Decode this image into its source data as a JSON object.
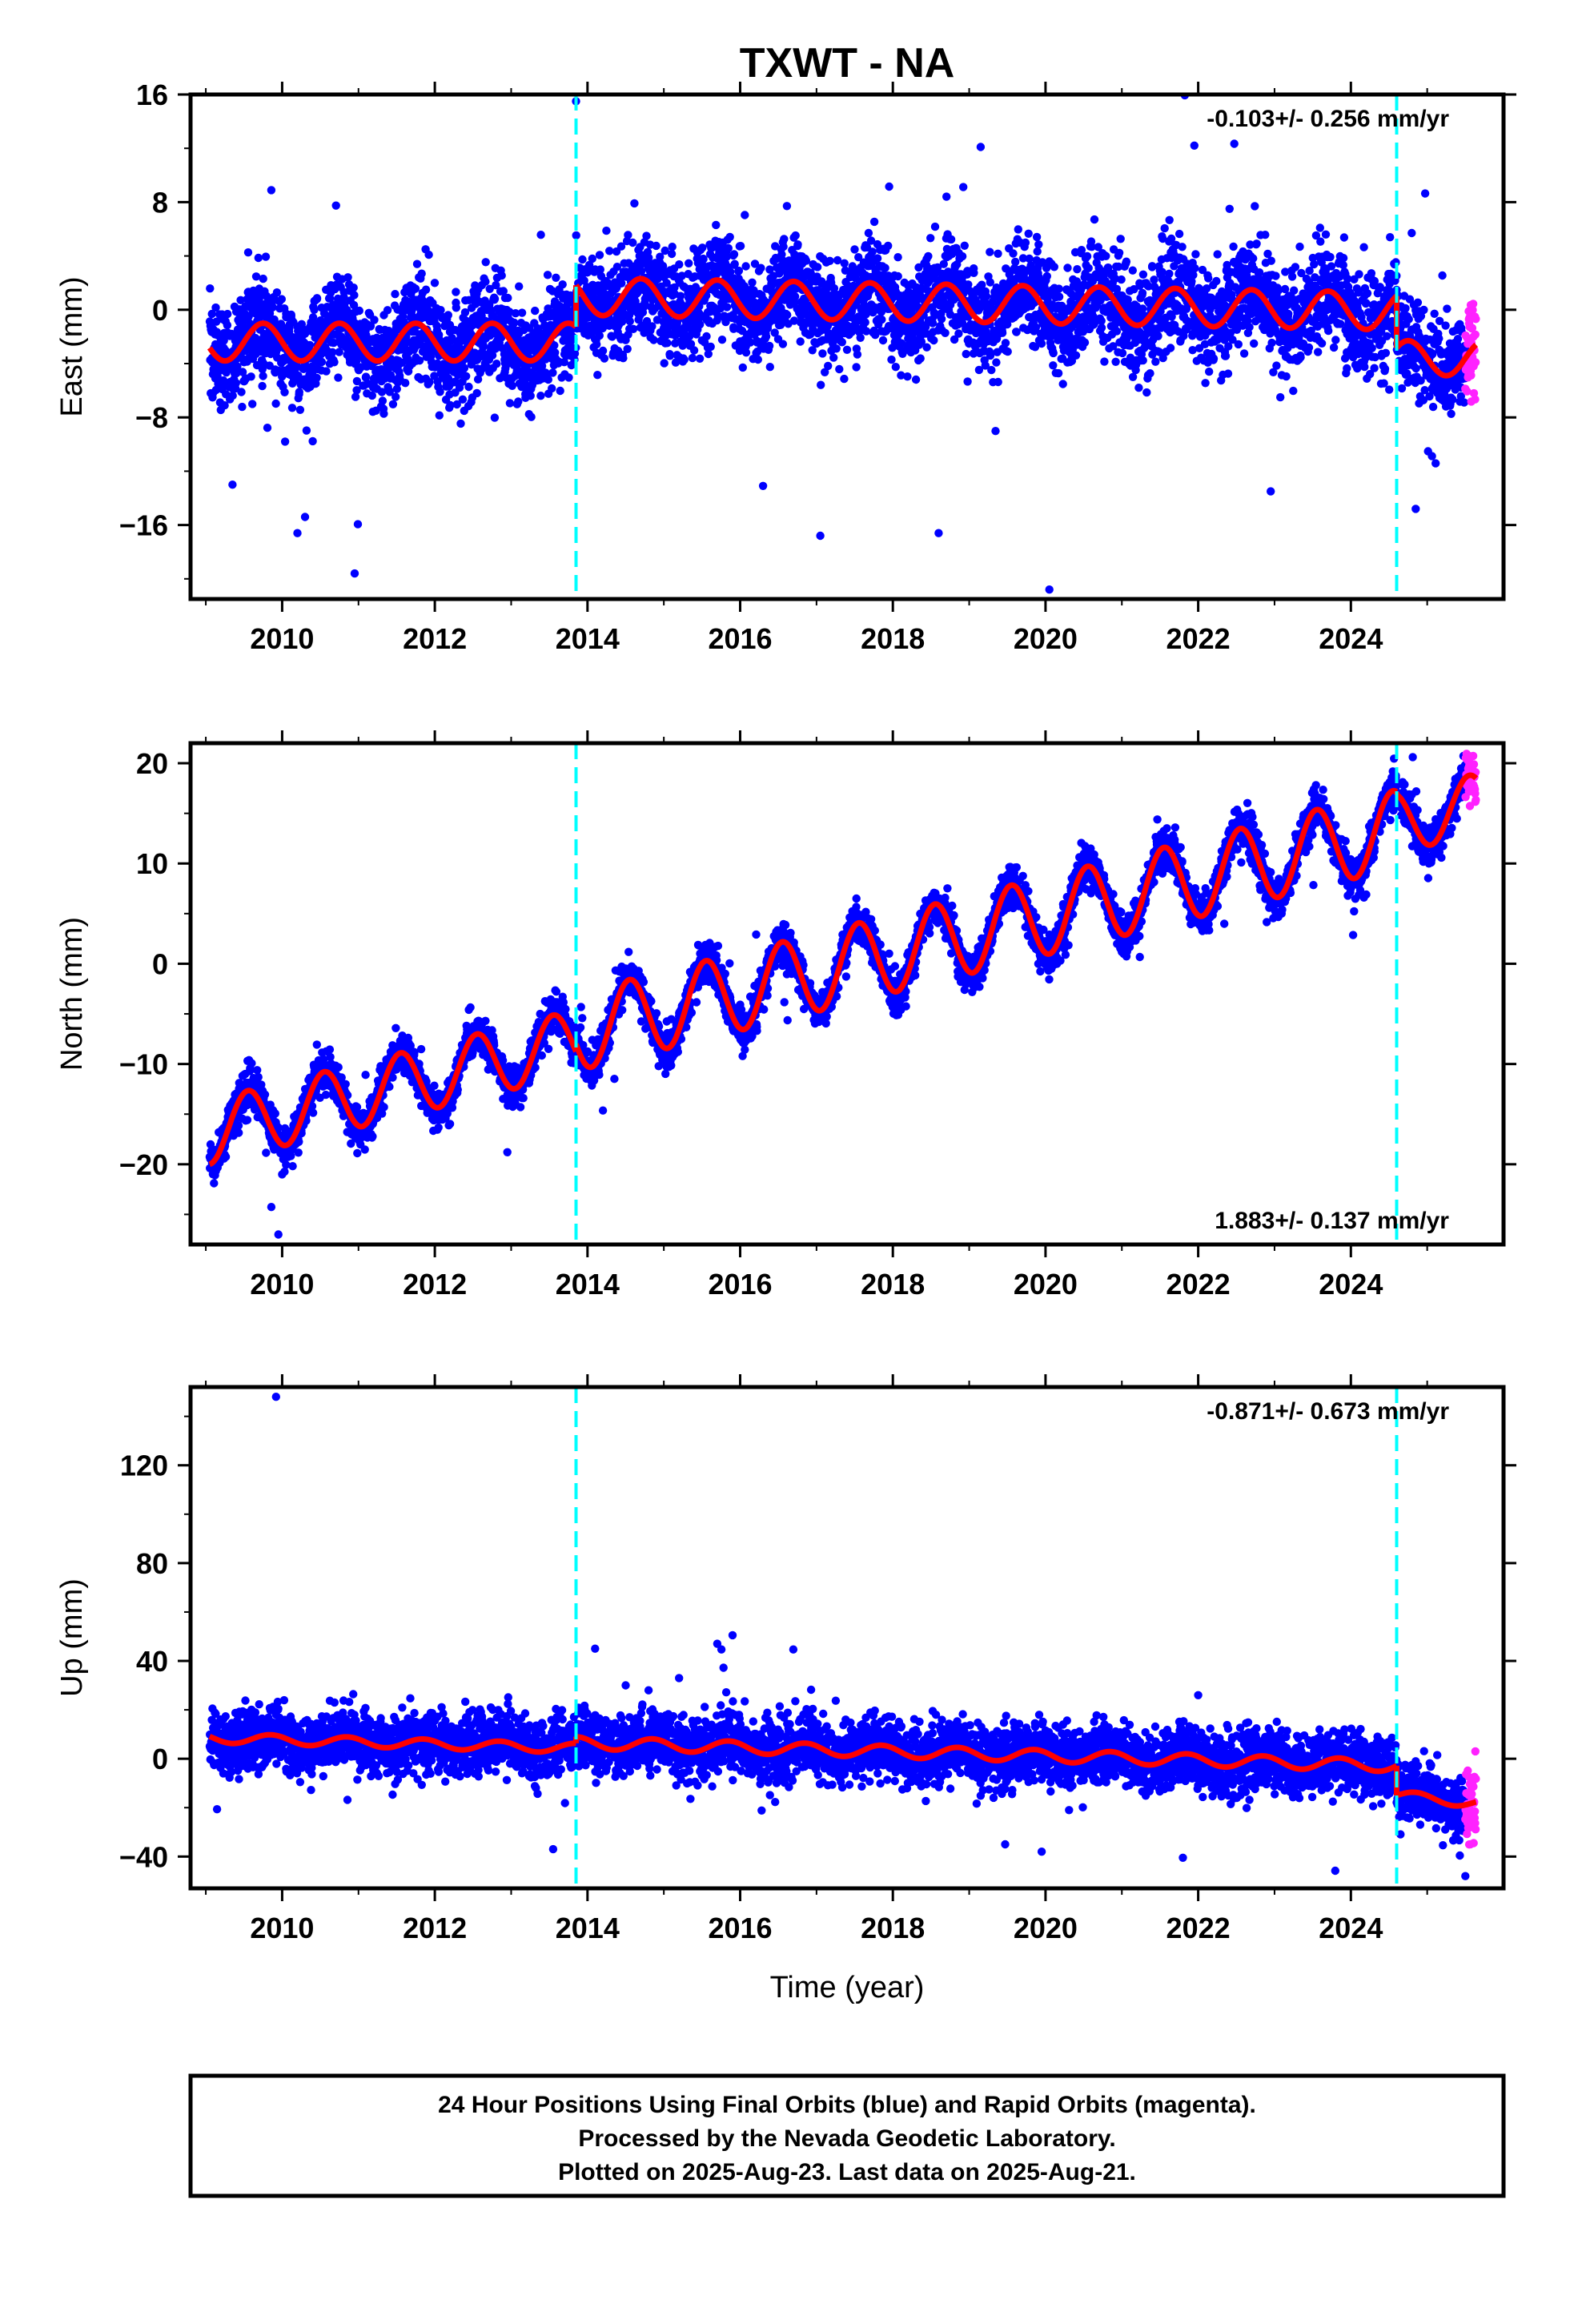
{
  "page_title": "TXWT - NA",
  "xlabel": "Time (year)",
  "footer": {
    "line1": "24 Hour Positions Using Final Orbits (blue) and Rapid Orbits (magenta).",
    "line2": "Processed by the Nevada Geodetic Laboratory.",
    "line3": "Plotted on 2025-Aug-23. Last data on 2025-Aug-21."
  },
  "colors": {
    "final_orbits": "#0000ff",
    "rapid_orbits": "#ff22ff",
    "model": "#ff0000",
    "event_lines": "#00ffff"
  },
  "chart_data": [
    {
      "type": "scatter",
      "name": "east",
      "title": "TXWT - NA",
      "ylabel": "East (mm)",
      "xlabel": "",
      "xlim": [
        2008.8,
        2026.0
      ],
      "ylim": [
        -21.5,
        16
      ],
      "yticks": [
        16,
        8,
        0,
        -8,
        -16
      ],
      "ytick_labels": [
        "16",
        "8",
        "0",
        "−8",
        "−16"
      ],
      "xticks": [
        2010,
        2012,
        2014,
        2016,
        2018,
        2020,
        2022,
        2024
      ],
      "xtick_labels": [
        "2010",
        "2012",
        "2014",
        "2016",
        "2018",
        "2020",
        "2022",
        "2024"
      ],
      "rate_text": "-0.103+/- 0.256 mm/yr",
      "rate_position": "top-right",
      "event_lines": [
        2013.85,
        2024.6
      ],
      "model": {
        "segments": [
          {
            "x0": 2009.05,
            "x1": 2013.85,
            "offset": -2.4,
            "slope": 0.0,
            "amp": 1.4,
            "phase_peak": 0.75
          },
          {
            "x0": 2013.85,
            "x1": 2024.6,
            "offset": 1.0,
            "slope": -0.103,
            "amp": 1.4,
            "phase_peak": 0.7
          },
          {
            "x0": 2024.6,
            "x1": 2025.64,
            "offset": -3.6,
            "slope": 0.0,
            "amp": 1.3,
            "phase_peak": 0.75
          }
        ]
      },
      "final_orbits": {
        "x_range": [
          2009.05,
          2025.5
        ],
        "scatter_sd": 1.8,
        "count": 5400
      },
      "rapid_orbits": {
        "x_range": [
          2025.5,
          2025.64
        ],
        "count": 45
      },
      "outliers": [
        [
          2013.85,
          15.5
        ],
        [
          2020.05,
          -20.8
        ],
        [
          2010.95,
          -19.6
        ],
        [
          2019.15,
          12.1
        ],
        [
          2021.95,
          12.2
        ],
        [
          2017.05,
          -16.8
        ],
        [
          2018.6,
          -16.6
        ],
        [
          2010.2,
          -16.6
        ],
        [
          2010.3,
          -15.4
        ],
        [
          2022.95,
          -13.5
        ],
        [
          2024.85,
          -14.8
        ],
        [
          2009.35,
          -13.0
        ]
      ]
    },
    {
      "type": "scatter",
      "name": "north",
      "ylabel": "North (mm)",
      "xlabel": "",
      "xlim": [
        2008.8,
        2026.0
      ],
      "ylim": [
        -28,
        22
      ],
      "yticks": [
        20,
        10,
        0,
        -10,
        -20
      ],
      "ytick_labels": [
        "20",
        "10",
        "0",
        "−10",
        "−20"
      ],
      "xticks": [
        2010,
        2012,
        2014,
        2016,
        2018,
        2020,
        2022,
        2024
      ],
      "xtick_labels": [
        "2010",
        "2012",
        "2014",
        "2016",
        "2018",
        "2020",
        "2022",
        "2024"
      ],
      "rate_text": "1.883+/- 0.137 mm/yr",
      "rate_position": "bottom-right",
      "event_lines": [
        2013.85,
        2024.6
      ],
      "model": {
        "segments": [
          {
            "x0": 2009.05,
            "x1": 2013.85,
            "offset": -16.8,
            "slope": 1.883,
            "amp": 3.2,
            "phase_peak": 0.55
          },
          {
            "x0": 2013.85,
            "x1": 2024.6,
            "offset": -6.8,
            "slope": 1.883,
            "amp": 3.9,
            "phase_peak": 0.55
          },
          {
            "x0": 2024.6,
            "x1": 2025.64,
            "offset": 14.0,
            "slope": 1.883,
            "amp": 3.0,
            "phase_peak": 0.55
          }
        ]
      },
      "final_orbits": {
        "x_range": [
          2009.05,
          2025.5
        ],
        "scatter_sd": 1.0,
        "count": 5400
      },
      "rapid_orbits": {
        "x_range": [
          2025.5,
          2025.64
        ],
        "count": 45
      },
      "outliers": [
        [
          2009.95,
          -27.0
        ],
        [
          2012.95,
          -18.8
        ],
        [
          2010.0,
          -21.0
        ]
      ]
    },
    {
      "type": "scatter",
      "name": "up",
      "ylabel": "Up (mm)",
      "xlabel": "Time (year)",
      "xlim": [
        2008.8,
        2026.0
      ],
      "ylim": [
        -53,
        152
      ],
      "yticks": [
        120,
        80,
        40,
        0,
        -40
      ],
      "ytick_labels": [
        "120",
        "80",
        "40",
        "0",
        "−40"
      ],
      "xticks": [
        2010,
        2012,
        2014,
        2016,
        2018,
        2020,
        2022,
        2024
      ],
      "xtick_labels": [
        "2010",
        "2012",
        "2014",
        "2016",
        "2018",
        "2020",
        "2022",
        "2024"
      ],
      "rate_text": "-0.871+/- 0.673 mm/yr",
      "rate_position": "top-right",
      "event_lines": [
        2013.85,
        2024.6
      ],
      "model": {
        "segments": [
          {
            "x0": 2009.05,
            "x1": 2013.85,
            "offset": 8.5,
            "slope": -0.871,
            "amp": 2.0,
            "phase_peak": 0.85
          },
          {
            "x0": 2013.85,
            "x1": 2024.6,
            "offset": 6.5,
            "slope": -0.871,
            "amp": 2.5,
            "phase_peak": 0.85
          },
          {
            "x0": 2024.6,
            "x1": 2025.64,
            "offset": -15.0,
            "slope": -3.0,
            "amp": 2.0,
            "phase_peak": 0.85
          }
        ]
      },
      "final_orbits": {
        "x_range": [
          2009.05,
          2025.5
        ],
        "scatter_sd": 6.0,
        "count": 5400
      },
      "rapid_orbits": {
        "x_range": [
          2025.5,
          2025.64
        ],
        "count": 45
      },
      "outliers": [
        [
          2009.92,
          148.0
        ],
        [
          2015.9,
          50.5
        ],
        [
          2014.1,
          45.0
        ],
        [
          2015.7,
          47.0
        ],
        [
          2013.55,
          -37.0
        ],
        [
          2019.95,
          -38.0
        ],
        [
          2021.8,
          -40.5
        ],
        [
          2025.5,
          -48.0
        ],
        [
          2022.0,
          26.0
        ],
        [
          2014.5,
          30.0
        ],
        [
          2014.8,
          28.0
        ],
        [
          2015.2,
          33.0
        ]
      ]
    }
  ]
}
